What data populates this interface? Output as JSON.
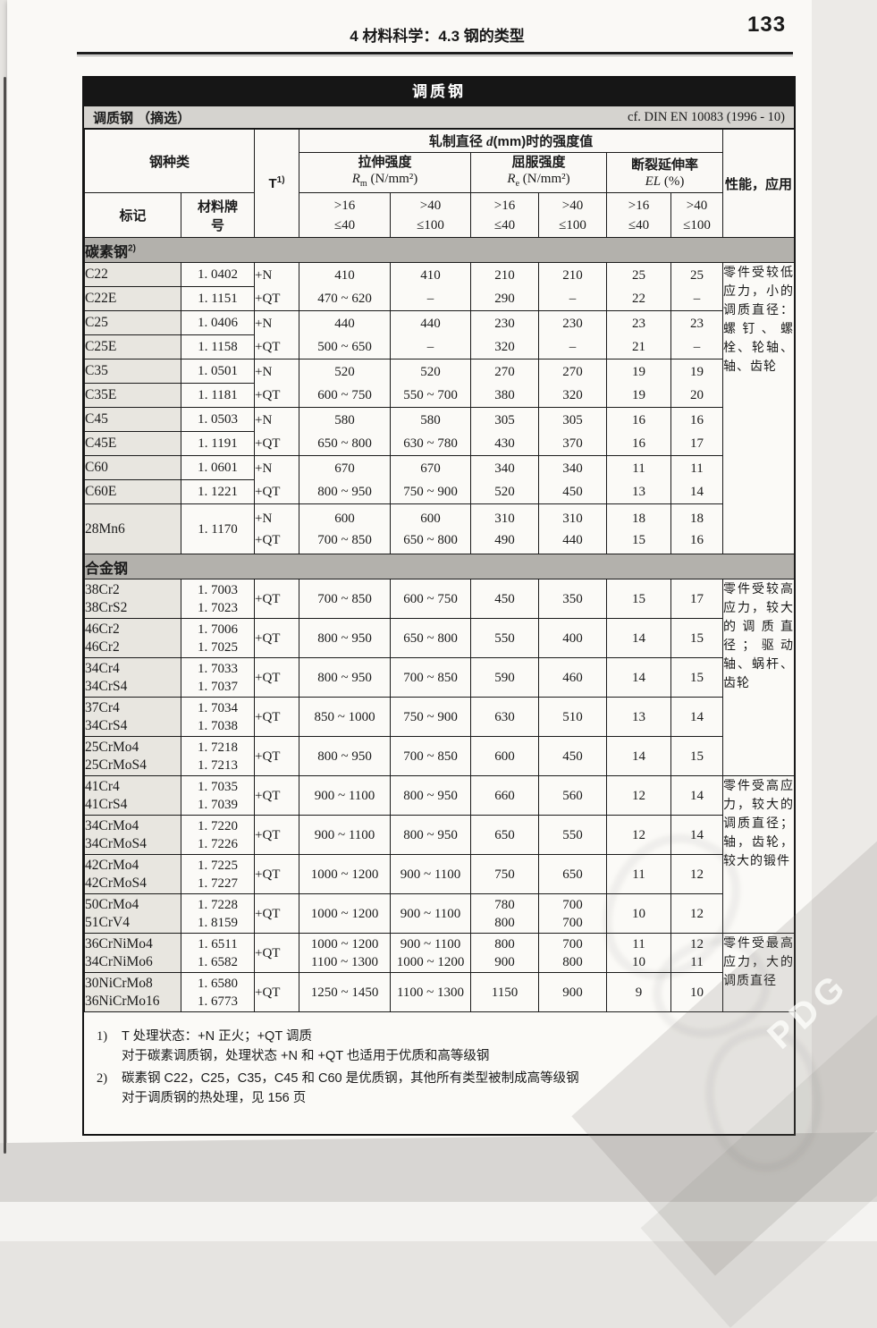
{
  "page": {
    "running_head": "4  材料科学：4.3  钢的类型",
    "page_number": "133"
  },
  "table": {
    "banner": "调质钢",
    "subtitle_left": "调质钢 （摘选）",
    "subtitle_right": "cf. DIN EN 10083 (1996 - 10)"
  },
  "header": {
    "steel_class": "钢种类",
    "mark": "标记",
    "material_no": "材料牌号",
    "treatment": "T",
    "treatment_sup": "1)",
    "diameter": {
      "pre": "轧制直径 ",
      "sym": "d",
      "post": "(mm)时的强度值"
    },
    "groups": [
      {
        "name": "拉伸强度",
        "sym": "R",
        "sub": "m",
        "unit": " (N/mm²)"
      },
      {
        "name": "屈服强度",
        "sym": "R",
        "sub": "e",
        "unit": " (N/mm²)"
      },
      {
        "name": "断裂延伸率",
        "sym": "EL",
        "sub": "",
        "unit": " (%)"
      }
    ],
    "ranges": [
      [
        ">16",
        "≤40"
      ],
      [
        ">40",
        "≤100"
      ]
    ],
    "properties": "性能，应用"
  },
  "sections": [
    {
      "title": "碳素钢",
      "sup": "2)",
      "pair": true,
      "rows": [
        {
          "marks": [
            "C22",
            "C22E"
          ],
          "nos": [
            "1. 0402",
            "1. 1151"
          ],
          "t": [
            "+N",
            "+QT"
          ],
          "vals": [
            [
              "410",
              "470 ~ 620"
            ],
            [
              "410",
              "–"
            ],
            [
              "210",
              "290"
            ],
            [
              "210",
              "–"
            ],
            [
              "25",
              "22"
            ],
            [
              "25",
              "–"
            ]
          ]
        },
        {
          "marks": [
            "C25",
            "C25E"
          ],
          "nos": [
            "1. 0406",
            "1. 1158"
          ],
          "t": [
            "+N",
            "+QT"
          ],
          "vals": [
            [
              "440",
              "500 ~ 650"
            ],
            [
              "440",
              "–"
            ],
            [
              "230",
              "320"
            ],
            [
              "230",
              "–"
            ],
            [
              "23",
              "21"
            ],
            [
              "23",
              "–"
            ]
          ]
        },
        {
          "marks": [
            "C35",
            "C35E"
          ],
          "nos": [
            "1. 0501",
            "1. 1181"
          ],
          "t": [
            "+N",
            "+QT"
          ],
          "vals": [
            [
              "520",
              "600 ~ 750"
            ],
            [
              "520",
              "550 ~ 700"
            ],
            [
              "270",
              "380"
            ],
            [
              "270",
              "320"
            ],
            [
              "19",
              "19"
            ],
            [
              "19",
              "20"
            ]
          ]
        },
        {
          "marks": [
            "C45",
            "C45E"
          ],
          "nos": [
            "1. 0503",
            "1. 1191"
          ],
          "t": [
            "+N",
            "+QT"
          ],
          "vals": [
            [
              "580",
              "650 ~ 800"
            ],
            [
              "580",
              "630 ~ 780"
            ],
            [
              "305",
              "430"
            ],
            [
              "305",
              "370"
            ],
            [
              "16",
              "16"
            ],
            [
              "16",
              "17"
            ]
          ]
        },
        {
          "marks": [
            "C60",
            "C60E"
          ],
          "nos": [
            "1. 0601",
            "1. 1221"
          ],
          "t": [
            "+N",
            "+QT"
          ],
          "vals": [
            [
              "670",
              "800 ~ 950"
            ],
            [
              "670",
              "750 ~ 900"
            ],
            [
              "340",
              "520"
            ],
            [
              "340",
              "450"
            ],
            [
              "11",
              "13"
            ],
            [
              "11",
              "14"
            ]
          ]
        },
        {
          "marks": [
            "28Mn6"
          ],
          "nos": [
            "1. 1170"
          ],
          "t": [
            "+N",
            "+QT"
          ],
          "vals": [
            [
              "600",
              "700 ~ 850"
            ],
            [
              "600",
              "650 ~ 800"
            ],
            [
              "310",
              "490"
            ],
            [
              "310",
              "440"
            ],
            [
              "18",
              "15"
            ],
            [
              "18",
              "16"
            ]
          ]
        }
      ],
      "notes": [
        {
          "text": "零件受较低应力，小的调质直径：螺钉、螺栓、轮轴、轴、齿轮",
          "start": 0,
          "span": 6
        }
      ]
    },
    {
      "title": "合金钢",
      "sup": "",
      "pair": false,
      "rows": [
        {
          "marks": [
            "38Cr2",
            "38CrS2"
          ],
          "nos": [
            "1. 7003",
            "1. 7023"
          ],
          "t": [
            "+QT"
          ],
          "vals": [
            [
              "700 ~ 850"
            ],
            [
              "600 ~ 750"
            ],
            [
              "450"
            ],
            [
              "350"
            ],
            [
              "15"
            ],
            [
              "17"
            ]
          ]
        },
        {
          "marks": [
            "46Cr2",
            "46Cr2"
          ],
          "nos": [
            "1. 7006",
            "1. 7025"
          ],
          "t": [
            "+QT"
          ],
          "vals": [
            [
              "800 ~ 950"
            ],
            [
              "650 ~ 800"
            ],
            [
              "550"
            ],
            [
              "400"
            ],
            [
              "14"
            ],
            [
              "15"
            ]
          ]
        },
        {
          "marks": [
            "34Cr4",
            "34CrS4"
          ],
          "nos": [
            "1. 7033",
            "1. 7037"
          ],
          "t": [
            "+QT"
          ],
          "vals": [
            [
              "800 ~ 950"
            ],
            [
              "700 ~ 850"
            ],
            [
              "590"
            ],
            [
              "460"
            ],
            [
              "14"
            ],
            [
              "15"
            ]
          ]
        },
        {
          "marks": [
            "37Cr4",
            "34CrS4"
          ],
          "nos": [
            "1. 7034",
            "1. 7038"
          ],
          "t": [
            "+QT"
          ],
          "vals": [
            [
              "850 ~ 1000"
            ],
            [
              "750 ~ 900"
            ],
            [
              "630"
            ],
            [
              "510"
            ],
            [
              "13"
            ],
            [
              "14"
            ]
          ]
        },
        {
          "marks": [
            "25CrMo4",
            "25CrMoS4"
          ],
          "nos": [
            "1. 7218",
            "1. 7213"
          ],
          "t": [
            "+QT"
          ],
          "vals": [
            [
              "800 ~ 950"
            ],
            [
              "700 ~ 850"
            ],
            [
              "600"
            ],
            [
              "450"
            ],
            [
              "14"
            ],
            [
              "15"
            ]
          ]
        },
        {
          "marks": [
            "41Cr4",
            "41CrS4"
          ],
          "nos": [
            "1. 7035",
            "1. 7039"
          ],
          "t": [
            "+QT"
          ],
          "vals": [
            [
              "900 ~ 1100"
            ],
            [
              "800 ~ 950"
            ],
            [
              "660"
            ],
            [
              "560"
            ],
            [
              "12"
            ],
            [
              "14"
            ]
          ]
        },
        {
          "marks": [
            "34CrMo4",
            "34CrMoS4"
          ],
          "nos": [
            "1. 7220",
            "1. 7226"
          ],
          "t": [
            "+QT"
          ],
          "vals": [
            [
              "900 ~ 1100"
            ],
            [
              "800 ~ 950"
            ],
            [
              "650"
            ],
            [
              "550"
            ],
            [
              "12"
            ],
            [
              "14"
            ]
          ]
        },
        {
          "marks": [
            "42CrMo4",
            "42CrMoS4"
          ],
          "nos": [
            "1. 7225",
            "1. 7227"
          ],
          "t": [
            "+QT"
          ],
          "vals": [
            [
              "1000 ~ 1200"
            ],
            [
              "900 ~ 1100"
            ],
            [
              "750"
            ],
            [
              "650"
            ],
            [
              "11"
            ],
            [
              "12"
            ]
          ]
        },
        {
          "marks": [
            "50CrMo4",
            "51CrV4"
          ],
          "nos": [
            "1. 7228",
            "1. 8159"
          ],
          "t": [
            "+QT"
          ],
          "vals": [
            [
              "1000 ~ 1200"
            ],
            [
              "900 ~ 1100"
            ],
            [
              "780",
              "800"
            ],
            [
              "700",
              "700"
            ],
            [
              "10"
            ],
            [
              "12"
            ]
          ]
        },
        {
          "marks": [
            "36CrNiMo4",
            "34CrNiMo6"
          ],
          "nos": [
            "1. 6511",
            "1. 6582"
          ],
          "t": [
            "+QT"
          ],
          "vals": [
            [
              "1000 ~ 1200",
              "1100 ~ 1300"
            ],
            [
              "900 ~ 1100",
              "1000 ~ 1200"
            ],
            [
              "800",
              "900"
            ],
            [
              "700",
              "800"
            ],
            [
              "11",
              "10"
            ],
            [
              "12",
              "11"
            ]
          ]
        },
        {
          "marks": [
            "30NiCrMo8",
            "36NiCrMo16"
          ],
          "nos": [
            "1. 6580",
            "1. 6773"
          ],
          "t": [
            "+QT"
          ],
          "vals": [
            [
              "1250 ~ 1450"
            ],
            [
              "1100 ~ 1300"
            ],
            [
              "1150"
            ],
            [
              "900"
            ],
            [
              "9"
            ],
            [
              "10"
            ]
          ]
        }
      ],
      "notes": [
        {
          "text": "零件受较高应力，较大的调质直径；驱动轴、蜗杆、齿轮",
          "start": 0,
          "span": 5
        },
        {
          "text": "零件受高应力，较大的调质直径；轴，齿轮，较大的锻件",
          "start": 5,
          "span": 4
        },
        {
          "text": "零件受最高应力，大的调质直径",
          "start": 9,
          "span": 2
        }
      ]
    }
  ],
  "footnotes": [
    {
      "marker": "1)",
      "lines": [
        "T 处理状态：+N 正火；+QT 调质",
        "对于碳素调质钢，处理状态 +N 和 +QT 也适用于优质和高等级钢"
      ]
    },
    {
      "marker": "2)",
      "lines": [
        "碳素钢 C22，C25，C35，C45 和 C60 是优质钢，其他所有类型被制成高等级钢",
        "对于调质钢的热处理，见 156 页"
      ]
    }
  ],
  "watermark": {
    "text": "PDG"
  },
  "colors": {
    "banner_bg": "#161616",
    "subtitle_bg": "#d5d3cf",
    "section_bg": "#b3b1ac",
    "mark_col_bg": "#e8e6e0",
    "paper": "#faf9f6"
  }
}
